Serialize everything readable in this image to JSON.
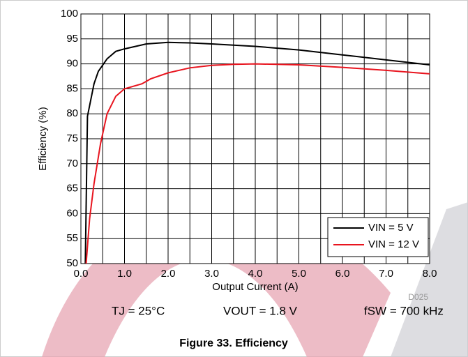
{
  "chart_data": {
    "type": "line",
    "x_label": "Output Current (A)",
    "y_label": "Efficiency (%)",
    "series": [
      {
        "name": "VIN = 5 V",
        "color": "#000000",
        "x": [
          0.1,
          0.15,
          0.3,
          0.4,
          0.6,
          0.8,
          1.0,
          1.5,
          2.0,
          2.5,
          3.0,
          4.0,
          5.0,
          6.0,
          7.0,
          8.0
        ],
        "values": [
          50,
          79.5,
          86,
          88.5,
          91,
          92.5,
          93,
          94,
          94.3,
          94.2,
          94,
          93.5,
          92.8,
          91.8,
          90.8,
          89.8
        ]
      },
      {
        "name": "VIN = 12 V",
        "color": "#e8141e",
        "x": [
          0.12,
          0.2,
          0.3,
          0.45,
          0.6,
          0.8,
          1.0,
          1.4,
          1.6,
          2.0,
          2.5,
          3.0,
          3.5,
          4.0,
          5.0,
          6.0,
          7.0,
          8.0
        ],
        "values": [
          50,
          59,
          66,
          74,
          80,
          83.5,
          85,
          86,
          87,
          88.2,
          89.2,
          89.7,
          89.9,
          90,
          89.8,
          89.3,
          88.7,
          88
        ]
      }
    ],
    "xlim": [
      0,
      8
    ],
    "ylim": [
      50,
      100
    ],
    "xticks": [
      {
        "value": 0,
        "label": "0.0"
      },
      {
        "value": 1,
        "label": "1.0"
      },
      {
        "value": 2,
        "label": "2.0"
      },
      {
        "value": 3,
        "label": "3.0"
      },
      {
        "value": 4,
        "label": "4.0"
      },
      {
        "value": 5,
        "label": "5.0"
      },
      {
        "value": 6,
        "label": "6.0"
      },
      {
        "value": 7,
        "label": "7.0"
      },
      {
        "value": 8,
        "label": "8.0"
      }
    ],
    "yticks": [
      50,
      55,
      60,
      65,
      70,
      75,
      80,
      85,
      90,
      95,
      100
    ],
    "grid": true,
    "legend": "lower right",
    "code": "D025",
    "annotations": [
      "TJ = 25°C",
      "VOUT = 1.8 V",
      "fSW = 700 kHz"
    ],
    "caption": "Figure 33. Efficiency"
  }
}
